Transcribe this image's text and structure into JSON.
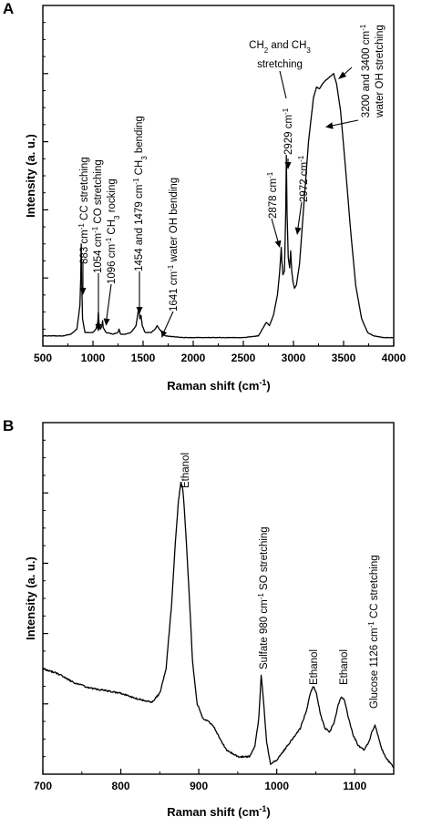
{
  "chart_data": [
    {
      "panel": "A",
      "type": "line",
      "xlabel": "Raman shift (cm⁻¹)",
      "ylabel": "Intensity (a. u.)",
      "xlim": [
        500,
        4000
      ],
      "ylim": [
        0,
        100
      ],
      "grid": false,
      "y_tick_labels_shown": false,
      "x_ticks": [
        500,
        1000,
        1500,
        2000,
        2500,
        3000,
        3500,
        4000
      ],
      "series": [
        {
          "x": [
            500,
            600,
            700,
            780,
            840,
            870,
            878,
            883,
            888,
            896,
            920,
            960,
            1000,
            1030,
            1048,
            1054,
            1060,
            1075,
            1090,
            1096,
            1102,
            1130,
            1200,
            1250,
            1260,
            1275,
            1320,
            1380,
            1430,
            1450,
            1458,
            1468,
            1479,
            1492,
            1520,
            1580,
            1620,
            1641,
            1662,
            1720,
            1900,
            2100,
            2300,
            2500,
            2650,
            2710,
            2730,
            2760,
            2800,
            2840,
            2860,
            2872,
            2878,
            2884,
            2895,
            2910,
            2922,
            2929,
            2936,
            2948,
            2962,
            2972,
            2983,
            2995,
            3010,
            3030,
            3060,
            3100,
            3150,
            3200,
            3230,
            3260,
            3290,
            3320,
            3360,
            3400,
            3430,
            3470,
            3520,
            3570,
            3620,
            3680,
            3740,
            3800,
            3900,
            4000
          ],
          "y": [
            3,
            3,
            3,
            3.5,
            5,
            12,
            20,
            30,
            19,
            8,
            4,
            4,
            4,
            5,
            7,
            10,
            7,
            5,
            6,
            7.5,
            5.5,
            4,
            3.5,
            4,
            5,
            3.5,
            3.5,
            4,
            6,
            10,
            11,
            8,
            9,
            6,
            4,
            4,
            5,
            6,
            5,
            3,
            2.5,
            2.5,
            2.5,
            2.5,
            3,
            6,
            7,
            6,
            9,
            15,
            21,
            26,
            29,
            25,
            21,
            22,
            38,
            56,
            39,
            26,
            23,
            28,
            22,
            19,
            17,
            18,
            24,
            40,
            60,
            73,
            76,
            75.5,
            77,
            78,
            79,
            80,
            77,
            69,
            52,
            34,
            18,
            8,
            4,
            3,
            2.5,
            2.5
          ]
        }
      ],
      "annotations": [
        {
          "text": "883 cm⁻¹ CC stretching",
          "x": 883
        },
        {
          "text": "1054 cm⁻¹ CO stretching",
          "x": 1054
        },
        {
          "text": "1096 cm⁻¹ CH₃ rocking",
          "x": 1096
        },
        {
          "text": "1454 and 1479 cm⁻¹ CH₃ bending",
          "x": 1454
        },
        {
          "text": "1641 cm⁻¹ water OH bending",
          "x": 1641
        },
        {
          "text": "2878 cm⁻¹",
          "x": 2878
        },
        {
          "text": "2929 cm⁻¹",
          "x": 2929
        },
        {
          "text": "2972 cm⁻¹",
          "x": 2972
        },
        {
          "text": "CH₂ and CH₃ stretching",
          "x": 2929
        },
        {
          "text": "3200 and 3400 cm⁻¹ water OH stretching",
          "x": 3400
        }
      ]
    },
    {
      "panel": "B",
      "type": "line",
      "xlabel": "Raman shift (cm⁻¹)",
      "ylabel": "Intensity (a. u.)",
      "xlim": [
        700,
        1150
      ],
      "ylim": [
        0,
        100
      ],
      "grid": false,
      "y_tick_labels_shown": false,
      "x_ticks": [
        700,
        800,
        900,
        1000,
        1100
      ],
      "series": [
        {
          "x": [
            700,
            720,
            740,
            760,
            780,
            800,
            820,
            840,
            850,
            858,
            865,
            870,
            874,
            877,
            879,
            881,
            884,
            888,
            892,
            898,
            905,
            912,
            918,
            925,
            935,
            950,
            965,
            972,
            977,
            980,
            983,
            987,
            992,
            1000,
            1010,
            1020,
            1030,
            1038,
            1043,
            1047,
            1051,
            1056,
            1062,
            1068,
            1074,
            1079,
            1083,
            1087,
            1092,
            1098,
            1105,
            1112,
            1118,
            1122,
            1126,
            1130,
            1135,
            1142,
            1150
          ],
          "y": [
            30,
            28.5,
            26,
            24.5,
            23.8,
            23,
            21.5,
            20.5,
            23,
            30,
            48,
            66,
            78,
            83,
            82,
            77,
            66,
            50,
            32,
            20,
            16,
            15,
            14,
            11,
            7,
            5,
            5,
            8,
            16,
            28,
            21,
            9,
            3,
            4,
            7,
            10,
            13,
            18,
            23,
            25,
            23,
            17,
            13,
            12,
            15,
            20,
            22,
            21,
            16,
            11,
            8,
            7,
            9,
            12,
            14,
            11,
            7,
            4,
            2
          ]
        }
      ],
      "annotations": [
        {
          "text": "Ethanol",
          "x": 880
        },
        {
          "text": "Sulfate 980 cm⁻¹ SO stretching",
          "x": 980
        },
        {
          "text": "Ethanol",
          "x": 1047
        },
        {
          "text": "Ethanol",
          "x": 1085
        },
        {
          "text": "Glucose 1126 cm⁻¹ CC stretching",
          "x": 1126
        }
      ]
    }
  ],
  "panels": {
    "a": {
      "letter": "A",
      "ylabel": "Intensity (a. u.)",
      "xlabel_main": "Raman shift (cm",
      "xlabel_sup": "-1",
      "xlabel_end": ")",
      "ticks": [
        "500",
        "1000",
        "1500",
        "2000",
        "2500",
        "3000",
        "3500",
        "4000"
      ],
      "ann_883": {
        "num": "883 cm",
        "sup": "-1",
        "rest": " CC stretching"
      },
      "ann_1054": {
        "num": "1054 cm",
        "sup": "-1",
        "rest": " CO stretching"
      },
      "ann_1096": {
        "num": "1096 cm",
        "sup": "-1",
        "mid": " CH",
        "sub": "3",
        "rest": " rocking"
      },
      "ann_1454": {
        "num": "1454 and 1479 cm",
        "sup": "-1",
        "mid": " CH",
        "sub": "3",
        "rest": " bending"
      },
      "ann_1641": {
        "num": "1641 cm",
        "sup": "-1",
        "rest": " water OH bending"
      },
      "ann_2878": {
        "num": "2878 cm",
        "sup": "-1"
      },
      "ann_2929": {
        "num": "2929 cm",
        "sup": "-1"
      },
      "ann_2972": {
        "num": "2972 cm",
        "sup": "-1"
      },
      "ann_ch": {
        "a": "CH",
        "sub1": "2",
        "b": " and CH",
        "sub2": "3",
        "line2": "stretching"
      },
      "ann_oh": {
        "num": "3200 and 3400 cm",
        "sup": "-1",
        "line2": "water OH stretching"
      }
    },
    "b": {
      "letter": "B",
      "ylabel": "Intensity (a. u.)",
      "xlabel_main": "Raman shift (cm",
      "xlabel_sup": "-1",
      "xlabel_end": ")",
      "ticks": [
        "700",
        "800",
        "900",
        "1000",
        "1100"
      ],
      "ann_ethanol_1": "Ethanol",
      "ann_sulfate": {
        "num": "Sulfate 980 cm",
        "sup": "-1",
        "rest": " SO stretching"
      },
      "ann_ethanol_2": "Ethanol",
      "ann_ethanol_3": "Ethanol",
      "ann_glucose": {
        "num": "Glucose 1126 cm",
        "sup": "-1",
        "rest": " CC stretching"
      }
    }
  }
}
